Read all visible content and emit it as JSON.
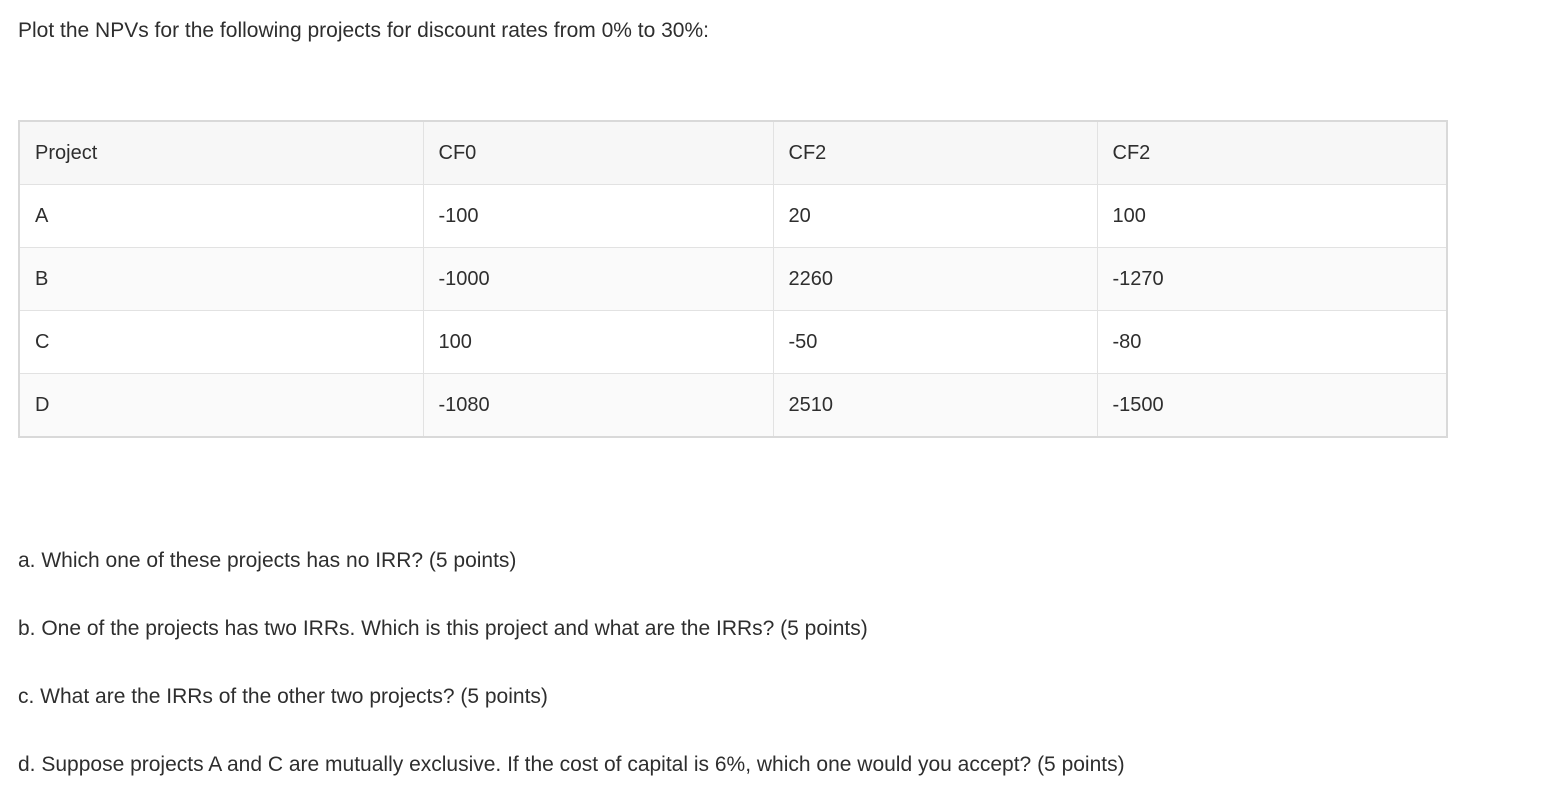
{
  "title": "Plot the NPVs for the following projects for discount rates from 0% to 30%:",
  "table": {
    "headers": [
      "Project",
      "CF0",
      "CF2",
      "CF2"
    ],
    "rows": [
      [
        "A",
        "-100",
        "20",
        "100"
      ],
      [
        "B",
        "-1000",
        "2260",
        "-1270"
      ],
      [
        "C",
        "100",
        "-50",
        "-80"
      ],
      [
        "D",
        "-1080",
        "2510",
        "-1500"
      ]
    ]
  },
  "questions": [
    "a. Which one of these projects has no IRR? (5 points)",
    "b. One of the projects has two IRRs. Which is this project and what are the IRRs? (5 points)",
    "c. What are the IRRs of the other two projects? (5 points)",
    "d. Suppose projects A and C are mutually exclusive. If the cost of capital is 6%, which one would you accept? (5 points)"
  ],
  "colors": {
    "page_bg": "#ffffff",
    "header_bg": "#f7f7f7",
    "stripe_bg": "#fafafa",
    "inner_border": "#e2e2e2",
    "outer_border": "#d9d9d9",
    "text": "#2e2e2e"
  }
}
